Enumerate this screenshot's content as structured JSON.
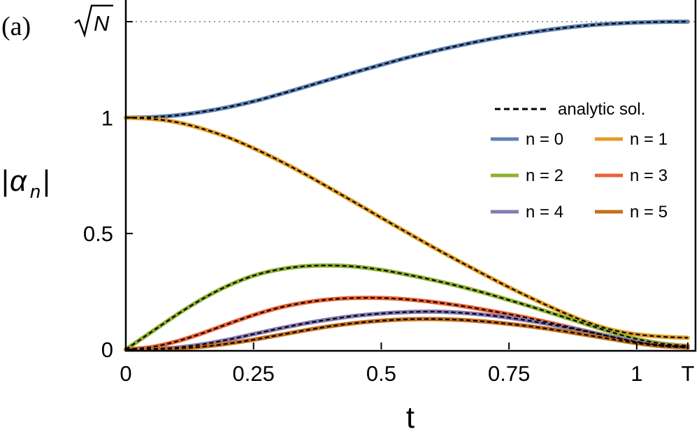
{
  "panel_label": "(a)",
  "chart_data": {
    "type": "line",
    "xlabel": "t",
    "ylabel": "|αn|",
    "xlim": [
      0,
      1.1
    ],
    "ylim": [
      0,
      1.414
    ],
    "x_ticks": [
      {
        "value": 0,
        "label": "0"
      },
      {
        "value": 0.25,
        "label": "0.25"
      },
      {
        "value": 0.5,
        "label": "0.5"
      },
      {
        "value": 0.75,
        "label": "0.75"
      },
      {
        "value": 1,
        "label": "1"
      },
      {
        "value": 1.1,
        "label": "T"
      }
    ],
    "y_ticks": [
      {
        "value": 0,
        "label": "0"
      },
      {
        "value": 0.5,
        "label": "0.5"
      },
      {
        "value": 1,
        "label": "1"
      },
      {
        "value": 1.414,
        "label": "√N"
      }
    ],
    "reference_line": {
      "y": 1.414,
      "style": "dotted",
      "color": "#777777"
    },
    "legend": {
      "placement": "top-right",
      "dashed_entry": "analytic sol.",
      "dashed_color": "#000000"
    },
    "x": [
      0,
      0.05,
      0.1,
      0.15,
      0.2,
      0.25,
      0.3,
      0.35,
      0.4,
      0.45,
      0.5,
      0.55,
      0.6,
      0.65,
      0.7,
      0.75,
      0.8,
      0.85,
      0.9,
      0.95,
      1.0,
      1.05,
      1.1
    ],
    "series": [
      {
        "name": "n = 0",
        "color": "#5e81b5",
        "values": [
          1.0,
          1.002,
          1.01,
          1.025,
          1.045,
          1.07,
          1.1,
          1.132,
          1.165,
          1.197,
          1.228,
          1.258,
          1.285,
          1.31,
          1.333,
          1.353,
          1.37,
          1.385,
          1.397,
          1.405,
          1.41,
          1.413,
          1.414
        ]
      },
      {
        "name": "n = 1",
        "color": "#e19c24",
        "values": [
          1.0,
          0.995,
          0.98,
          0.952,
          0.915,
          0.868,
          0.815,
          0.757,
          0.695,
          0.632,
          0.568,
          0.505,
          0.443,
          0.383,
          0.325,
          0.268,
          0.215,
          0.165,
          0.12,
          0.085,
          0.065,
          0.055,
          0.05
        ]
      },
      {
        "name": "n = 2",
        "color": "#8fb032",
        "values": [
          0.0,
          0.075,
          0.15,
          0.218,
          0.275,
          0.318,
          0.345,
          0.359,
          0.362,
          0.357,
          0.343,
          0.323,
          0.3,
          0.274,
          0.245,
          0.213,
          0.18,
          0.145,
          0.11,
          0.075,
          0.045,
          0.025,
          0.015
        ]
      },
      {
        "name": "n = 3",
        "color": "#eb6235",
        "values": [
          0.0,
          0.01,
          0.035,
          0.07,
          0.11,
          0.148,
          0.18,
          0.202,
          0.216,
          0.222,
          0.222,
          0.216,
          0.205,
          0.19,
          0.172,
          0.152,
          0.13,
          0.105,
          0.08,
          0.055,
          0.032,
          0.018,
          0.012
        ]
      },
      {
        "name": "n = 4",
        "color": "#8778b3",
        "values": [
          0.0,
          0.002,
          0.008,
          0.022,
          0.042,
          0.066,
          0.09,
          0.112,
          0.13,
          0.145,
          0.155,
          0.161,
          0.163,
          0.159,
          0.15,
          0.137,
          0.12,
          0.1,
          0.078,
          0.055,
          0.033,
          0.017,
          0.01
        ]
      },
      {
        "name": "n = 5",
        "color": "#c56e1a",
        "values": [
          0.0,
          0.001,
          0.004,
          0.012,
          0.025,
          0.042,
          0.062,
          0.082,
          0.1,
          0.114,
          0.124,
          0.13,
          0.131,
          0.128,
          0.121,
          0.11,
          0.097,
          0.081,
          0.063,
          0.045,
          0.027,
          0.014,
          0.008
        ]
      }
    ]
  }
}
